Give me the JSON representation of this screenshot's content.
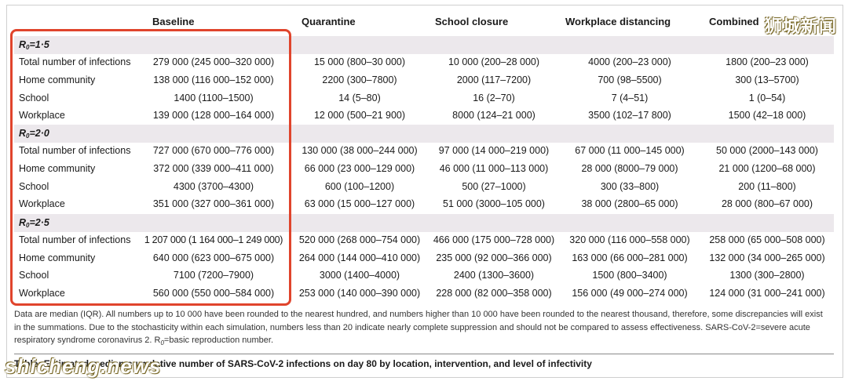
{
  "columns": {
    "baseline": "Baseline",
    "quarantine": "Quarantine",
    "school": "School closure",
    "workplace": "Workplace distancing",
    "combined": "Combined"
  },
  "groups": [
    {
      "label_main": "R",
      "label_sub": "0",
      "label_tail": "=1·5",
      "rows": [
        {
          "label": "Total number of infections",
          "baseline": "279 000 (245 000–320 000)",
          "quarantine": "15 000 (800–30 000)",
          "school": "10 000 (200–28 000)",
          "workplace": "4000 (200–23 000)",
          "combined": "1800 (200–23 000)"
        },
        {
          "label": "Home community",
          "baseline": "138 000 (116 000–152 000)",
          "quarantine": "2200 (300–7800)",
          "school": "2000 (117–7200)",
          "workplace": "700 (98–5500)",
          "combined": "300 (13–5700)"
        },
        {
          "label": "School",
          "baseline": "1400 (1100–1500)",
          "quarantine": "14 (5–80)",
          "school": "16 (2–70)",
          "workplace": "7 (4–51)",
          "combined": "1 (0–54)"
        },
        {
          "label": "Workplace",
          "baseline": "139 000 (128 000–164 000)",
          "quarantine": "12 000 (500–21 900)",
          "school": "8000 (124–21 000)",
          "workplace": "3500 (102–17 800)",
          "combined": "1500 (42–18 000)"
        }
      ]
    },
    {
      "label_main": "R",
      "label_sub": "0",
      "label_tail": "=2·0",
      "rows": [
        {
          "label": "Total number of infections",
          "baseline": "727 000 (670 000–776 000)",
          "quarantine": "130 000 (38 000–244 000)",
          "school": "97 000 (14 000–219 000)",
          "workplace": "67 000 (11 000–145 000)",
          "combined": "50 000 (2000–143 000)"
        },
        {
          "label": "Home community",
          "baseline": "372 000 (339 000–411 000)",
          "quarantine": "66 000 (23 000–129 000)",
          "school": "46 000 (11 000–113 000)",
          "workplace": "28 000 (8000–79 000)",
          "combined": "21 000 (1200–68 000)"
        },
        {
          "label": "School",
          "baseline": "4300 (3700–4300)",
          "quarantine": "600 (100–1200)",
          "school": "500 (27–1000)",
          "workplace": "300 (33–800)",
          "combined": "200 (11–800)"
        },
        {
          "label": "Workplace",
          "baseline": "351 000 (327 000–361 000)",
          "quarantine": "63 000 (15 000–127 000)",
          "school": "51 000 (3000–105 000)",
          "workplace": "38 000 (2800–65 000)",
          "combined": "28 000 (800–67 000)"
        }
      ]
    },
    {
      "label_main": "R",
      "label_sub": "0",
      "label_tail": "=2·5",
      "rows": [
        {
          "label": "Total number of infections",
          "baseline": "1 207 000 (1 164 000–1 249 000)",
          "quarantine": "520 000 (268 000–754 000)",
          "school": "466 000 (175 000–728 000)",
          "workplace": "320 000 (116 000–558 000)",
          "combined": "258 000 (65 000–508 000)"
        },
        {
          "label": "Home community",
          "baseline": "640 000 (623 000–675 000)",
          "quarantine": "264 000 (144 000–410 000)",
          "school": "235 000 (92 000–366 000)",
          "workplace": "163 000 (66 000–281 000)",
          "combined": "132 000 (34 000–265 000)"
        },
        {
          "label": "School",
          "baseline": "7100 (7200–7900)",
          "quarantine": "3000 (1400–4000)",
          "school": "2400 (1300–3600)",
          "workplace": "1500 (800–3400)",
          "combined": "1300 (300–2800)"
        },
        {
          "label": "Workplace",
          "baseline": "560 000 (550 000–584 000)",
          "quarantine": "253 000 (140 000–390 000)",
          "school": "228 000 (82 000–358 000)",
          "workplace": "156 000 (49 000–274 000)",
          "combined": "124 000 (31 000–241 000)"
        }
      ]
    }
  ],
  "footnote": {
    "line1": "Data are median (IQR). All numbers up to 10 000 have been rounded to the nearest hundred, and numbers higher than 10 000 have been rounded to the nearest thousand, therefore, some discrepancies will exist",
    "line2": "in the summations. Due to the stochasticity within each simulation, numbers less than 20 indicate nearly complete suppression and should not be compared to assess effectiveness. SARS-CoV-2=severe acute",
    "line3_pre": "respiratory syndrome coronavirus 2. R",
    "line3_sub": "0",
    "line3_post": "=basic reproduction number."
  },
  "caption": "Table: Estimated median cumulative number of SARS-CoV-2 infections on day 80 by location, intervention, and level of infectivity",
  "watermark_top": "狮城新闻",
  "watermark_bottom": "shicheng.news",
  "colors": {
    "highlight": "#e0442c",
    "group_band": "#ece8ec"
  }
}
